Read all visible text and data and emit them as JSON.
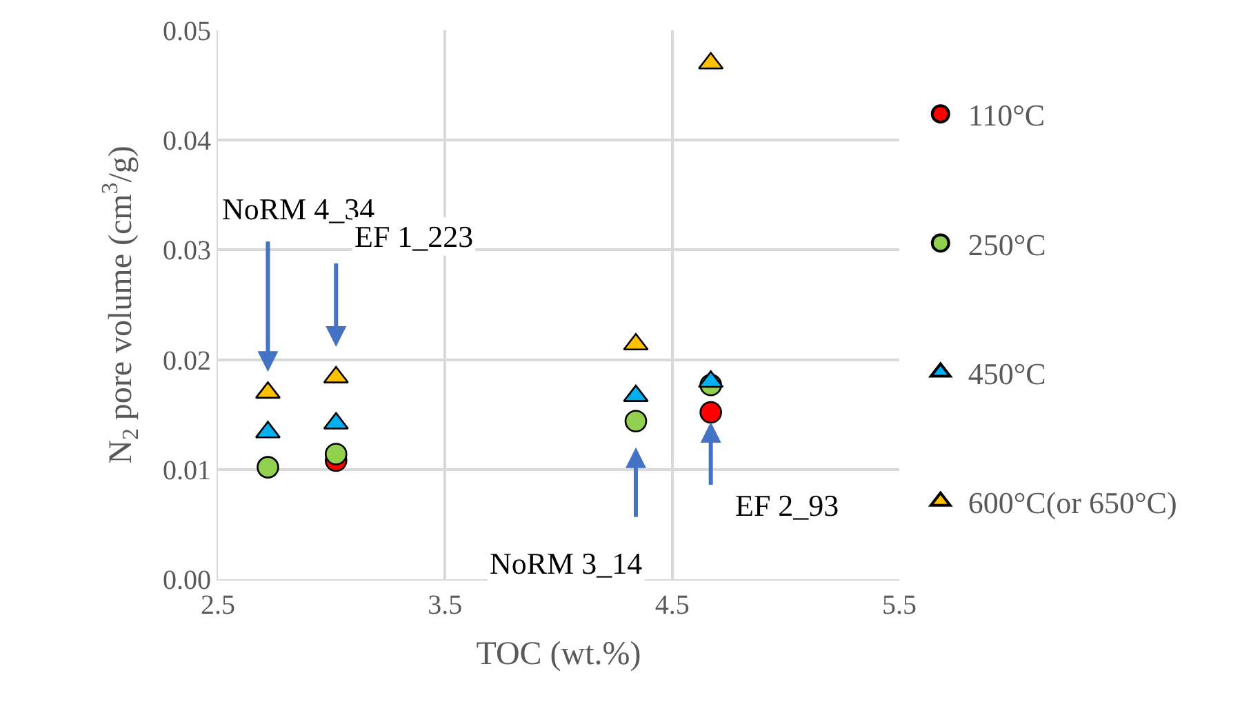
{
  "chart_data": {
    "type": "scatter",
    "xlabel": "TOC (wt.%)",
    "ylabel": "N$_{2}$ pore volume (cm$^{3}$/g)",
    "x": [
      2.72,
      3.02,
      4.34,
      4.67
    ],
    "series": [
      {
        "name": "110°C",
        "color": "#ff0000",
        "marker": "circle",
        "values": [
          null,
          0.0108,
          null,
          0.0152
        ]
      },
      {
        "name": "250°C",
        "color": "#92d050",
        "marker": "circle",
        "values": [
          0.0102,
          0.0114,
          0.0144,
          0.0177
        ]
      },
      {
        "name": "450°C",
        "color": "#00b0f0",
        "marker": "triangle",
        "values": [
          0.0134,
          0.0142,
          0.0167,
          0.018
        ]
      },
      {
        "name": "600°C(or 650°C)",
        "color": "#ffc000",
        "marker": "triangle",
        "values": [
          0.017,
          0.0184,
          0.0214,
          0.047
        ]
      }
    ],
    "xlim": [
      2.5,
      5.5
    ],
    "xticks": [
      2.5,
      3.5,
      4.5,
      5.5
    ],
    "ylim": [
      0,
      0.05
    ],
    "yticks": [
      {
        "value": 0,
        "label": "0.00"
      },
      {
        "value": 0.01,
        "label": "0.01"
      },
      {
        "value": 0.02,
        "label": "0.02"
      },
      {
        "value": 0.03,
        "label": "0.03"
      },
      {
        "value": 0.04,
        "label": "0.04"
      },
      {
        "value": 0.05,
        "label": "0.05"
      }
    ],
    "grid": true,
    "legend": "right",
    "annotations": [
      {
        "text": "NoRM 4_34",
        "x": 2.72,
        "y": 0.017
      },
      {
        "text": "EF 1_223",
        "x": 3.02,
        "y": 0.0184
      },
      {
        "text": "NoRM 3_14",
        "x": 4.34,
        "y": 0.0144
      },
      {
        "text": "EF 2_93",
        "x": 4.67,
        "y": 0.0152
      }
    ]
  }
}
